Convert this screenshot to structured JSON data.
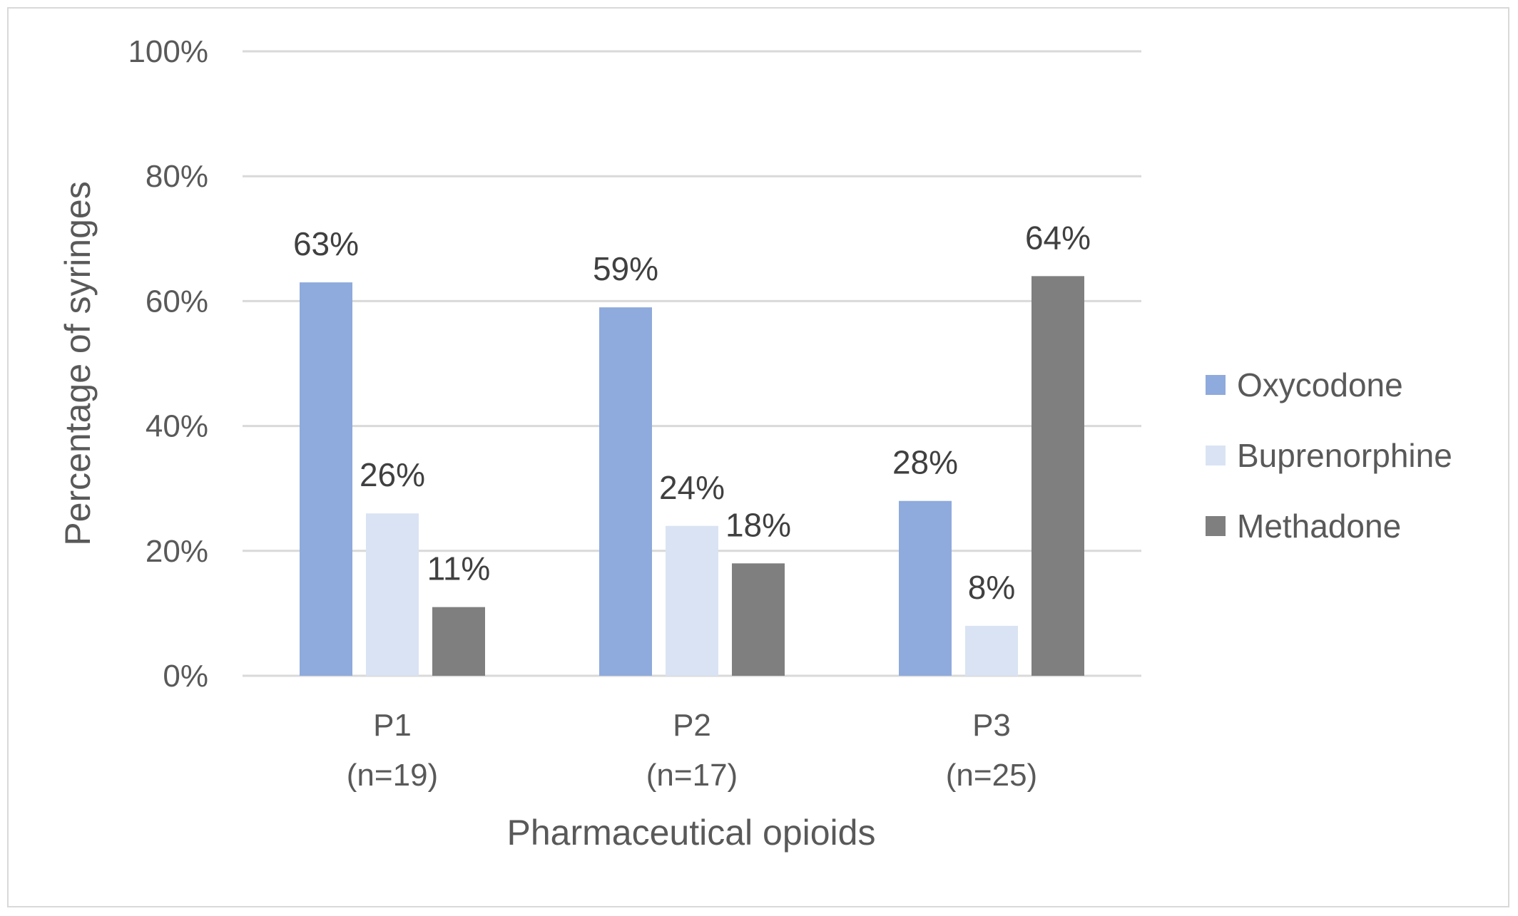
{
  "chart_data": {
    "type": "bar",
    "categories": [
      "P1\n(n=19)",
      "P2\n(n=17)",
      "P3\n(n=25)"
    ],
    "series": [
      {
        "name": "Oxycodone",
        "values": [
          63,
          59,
          28
        ],
        "labels": [
          "63%",
          "59%",
          "28%"
        ],
        "color": "#8faadc"
      },
      {
        "name": "Buprenorphine",
        "values": [
          26,
          24,
          8
        ],
        "labels": [
          "26%",
          "24%",
          "8%"
        ],
        "color": "#dae3f3"
      },
      {
        "name": "Methadone",
        "values": [
          11,
          18,
          64
        ],
        "labels": [
          "11%",
          "18%",
          "64%"
        ],
        "color": "#7f7f7f"
      }
    ],
    "xlabel": "Pharmaceutical opioids",
    "ylabel": "Percentage of syringes",
    "ylim": [
      0,
      100
    ],
    "yticks": [
      0,
      20,
      40,
      60,
      80,
      100
    ],
    "ytick_labels": [
      "0%",
      "20%",
      "40%",
      "60%",
      "80%",
      "100%"
    ],
    "grid": true,
    "legend": "right"
  }
}
